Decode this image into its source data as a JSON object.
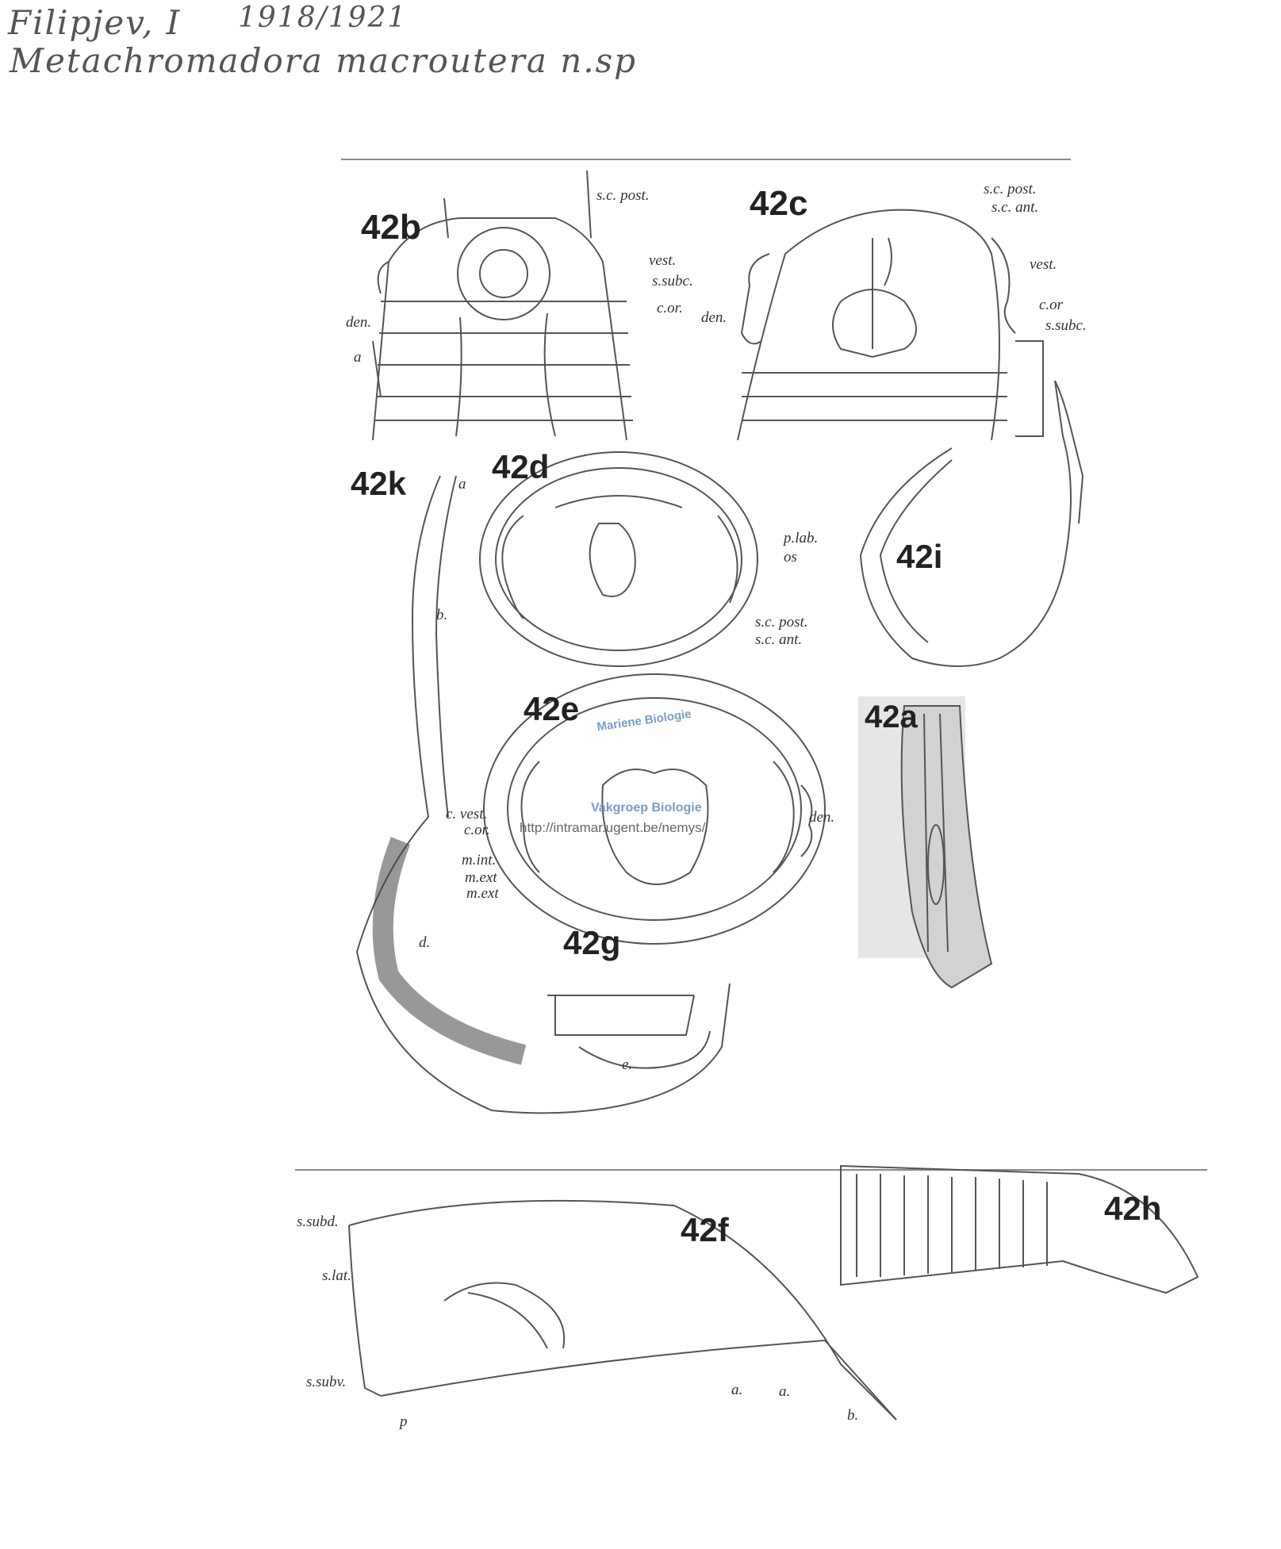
{
  "handwritten": {
    "author": "Filipjev, I",
    "years": "1918/1921",
    "species": "Metachromadora macroutera n.sp"
  },
  "figures": {
    "f42a": "42a",
    "f42b": "42b",
    "f42c": "42c",
    "f42d": "42d",
    "f42e": "42e",
    "f42f": "42f",
    "f42g": "42g",
    "f42h": "42h",
    "f42i": "42i",
    "f42k": "42k"
  },
  "labels_42b": {
    "sc_post": "s.c. post.",
    "vest": "vest.",
    "s_subc": "s.subc.",
    "c_or": "c.or.",
    "den": "den.",
    "a": "a"
  },
  "labels_42c": {
    "sc_post": "s.c. post.",
    "sc_ant": "s.c. ant.",
    "vest": "vest.",
    "c_or": "c.or",
    "s_subc": "s.subc.",
    "den": "den."
  },
  "labels_42d": {
    "p_lab": "p.lab.",
    "os": "os",
    "sc_post": "s.c. post.",
    "sc_ant": "s.c. ant."
  },
  "labels_42e": {
    "c_vest": "c. vest.",
    "c_or": "c.or.",
    "m_int": "m.int.",
    "m_ext1": "m.ext",
    "m_ext2": "m.ext",
    "den": "den."
  },
  "labels_42k": {
    "a": "a",
    "b": "b.",
    "d": "d.",
    "e": "e."
  },
  "labels_42f": {
    "s_subd": "s.subd.",
    "s_lat": "s.lat.",
    "s_subv": "s.subv.",
    "p": "p",
    "a1": "a.",
    "a2": "a.",
    "b": "b."
  },
  "watermark": {
    "line1": "Mariene Biologie",
    "line2": "Vakgroep Biologie",
    "url": "http://intramar.ugent.be/nemys/"
  }
}
